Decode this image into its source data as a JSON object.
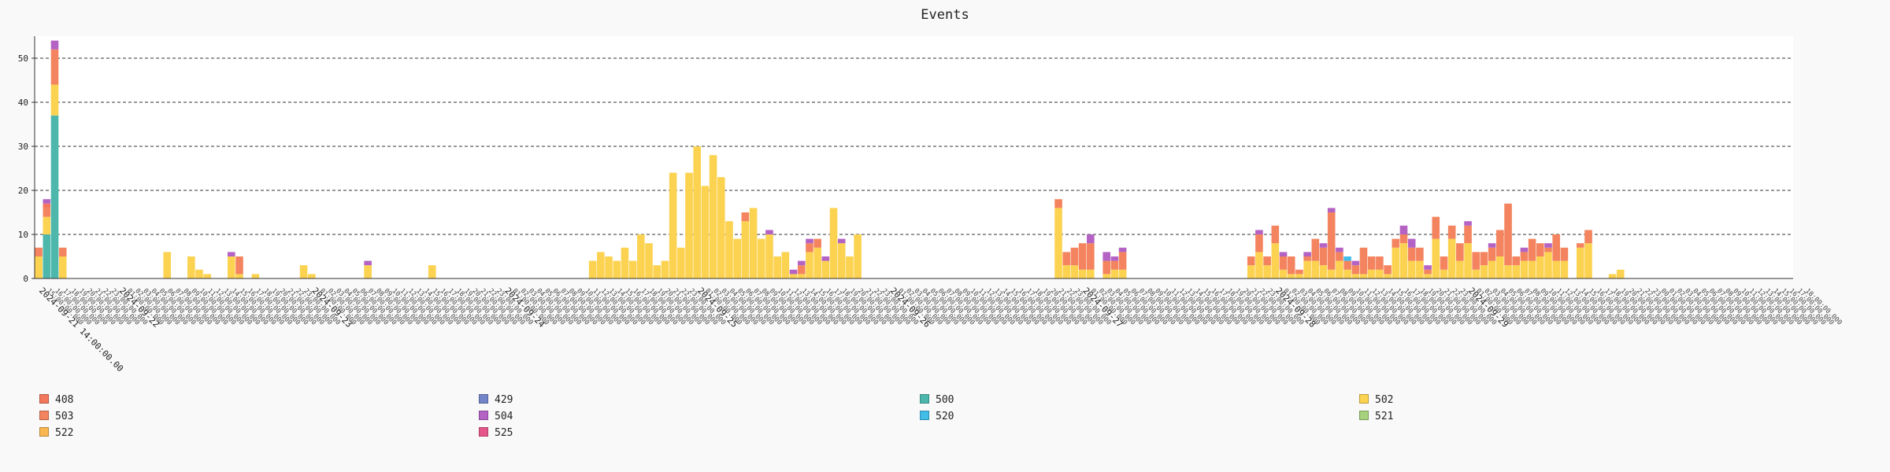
{
  "chart_data": {
    "type": "bar",
    "stacked": true,
    "title": "Events",
    "xlabel": "",
    "ylabel": "",
    "ylim": [
      0,
      55
    ],
    "yticks": [
      0,
      10,
      20,
      30,
      40,
      50
    ],
    "grid": "horizontal dashed",
    "major_x_labels": [
      "2024-09-21 14:00:00.00",
      "2024-09-22",
      "2024-09-23",
      "2024-09-24",
      "2024-09-25",
      "2024-09-26",
      "2024-09-27",
      "2024-09-28",
      "2024-09-29"
    ],
    "first_bucket_label_index": 0,
    "bucket_hours": 1,
    "buckets": 219,
    "series_order": [
      "500",
      "502",
      "522",
      "503",
      "408",
      "520",
      "504",
      "429",
      "521",
      "525"
    ],
    "colors": {
      "408": "#f2775c",
      "503": "#f4845f",
      "522": "#f9b64e",
      "429": "#7285c9",
      "504": "#b462c4",
      "525": "#e4568a",
      "500": "#4db7ac",
      "520": "#42bde8",
      "502": "#fcd251",
      "521": "#a6d17d"
    },
    "series": [
      {
        "name": "500",
        "points": [
          [
            1,
            10
          ],
          [
            2,
            37
          ]
        ]
      },
      {
        "name": "502",
        "points": [
          [
            0,
            5
          ],
          [
            1,
            4
          ],
          [
            2,
            7
          ],
          [
            3,
            5
          ],
          [
            16,
            6
          ],
          [
            19,
            5
          ],
          [
            20,
            2
          ],
          [
            21,
            1
          ],
          [
            24,
            5
          ],
          [
            25,
            1
          ],
          [
            27,
            1
          ],
          [
            33,
            3
          ],
          [
            34,
            1
          ],
          [
            41,
            3
          ],
          [
            49,
            3
          ],
          [
            69,
            4
          ],
          [
            70,
            6
          ],
          [
            71,
            5
          ],
          [
            72,
            4
          ],
          [
            73,
            7
          ],
          [
            74,
            4
          ],
          [
            75,
            10
          ],
          [
            76,
            8
          ],
          [
            77,
            3
          ],
          [
            78,
            4
          ],
          [
            79,
            24
          ],
          [
            80,
            7
          ],
          [
            81,
            24
          ],
          [
            82,
            30
          ],
          [
            83,
            21
          ],
          [
            84,
            28
          ],
          [
            85,
            23
          ],
          [
            86,
            13
          ],
          [
            87,
            9
          ],
          [
            88,
            13
          ],
          [
            89,
            16
          ],
          [
            90,
            9
          ],
          [
            91,
            10
          ],
          [
            92,
            5
          ],
          [
            93,
            6
          ],
          [
            94,
            1
          ],
          [
            95,
            1
          ],
          [
            96,
            6
          ],
          [
            97,
            7
          ],
          [
            98,
            4
          ],
          [
            99,
            16
          ],
          [
            100,
            8
          ],
          [
            101,
            5
          ],
          [
            102,
            10
          ],
          [
            127,
            16
          ],
          [
            128,
            3
          ],
          [
            129,
            3
          ],
          [
            130,
            2
          ],
          [
            131,
            2
          ],
          [
            133,
            1
          ],
          [
            134,
            2
          ],
          [
            135,
            2
          ],
          [
            151,
            3
          ],
          [
            152,
            6
          ],
          [
            153,
            3
          ],
          [
            154,
            8
          ],
          [
            155,
            2
          ],
          [
            156,
            1
          ],
          [
            157,
            1
          ],
          [
            158,
            4
          ],
          [
            159,
            4
          ],
          [
            160,
            3
          ],
          [
            161,
            2
          ],
          [
            162,
            4
          ],
          [
            163,
            2
          ],
          [
            164,
            1
          ],
          [
            165,
            1
          ],
          [
            166,
            2
          ],
          [
            167,
            2
          ],
          [
            168,
            1
          ],
          [
            169,
            7
          ],
          [
            170,
            8
          ],
          [
            171,
            4
          ],
          [
            172,
            4
          ],
          [
            173,
            1
          ],
          [
            174,
            9
          ],
          [
            175,
            2
          ],
          [
            176,
            9
          ],
          [
            177,
            4
          ],
          [
            178,
            8
          ],
          [
            179,
            2
          ],
          [
            180,
            3
          ],
          [
            181,
            4
          ],
          [
            182,
            5
          ],
          [
            183,
            3
          ],
          [
            184,
            3
          ],
          [
            185,
            4
          ],
          [
            186,
            4
          ],
          [
            187,
            5
          ],
          [
            188,
            6
          ],
          [
            189,
            4
          ],
          [
            190,
            4
          ],
          [
            192,
            7
          ],
          [
            193,
            8
          ],
          [
            196,
            1
          ],
          [
            197,
            2
          ]
        ]
      },
      {
        "name": "522",
        "points": [
          [
            1,
            0
          ],
          [
            2,
            0
          ]
        ]
      },
      {
        "name": "503",
        "points": [
          [
            0,
            2
          ],
          [
            1,
            2
          ],
          [
            2,
            8
          ],
          [
            3,
            2
          ],
          [
            25,
            4
          ],
          [
            88,
            2
          ],
          [
            95,
            2
          ],
          [
            96,
            2
          ],
          [
            97,
            2
          ],
          [
            99,
            0
          ],
          [
            127,
            2
          ],
          [
            128,
            3
          ],
          [
            129,
            4
          ],
          [
            130,
            6
          ],
          [
            131,
            6
          ],
          [
            133,
            3
          ],
          [
            134,
            2
          ],
          [
            135,
            4
          ],
          [
            151,
            2
          ],
          [
            152,
            4
          ],
          [
            153,
            2
          ],
          [
            154,
            4
          ],
          [
            155,
            3
          ],
          [
            156,
            4
          ],
          [
            157,
            1
          ],
          [
            158,
            1
          ],
          [
            159,
            5
          ],
          [
            160,
            4
          ],
          [
            161,
            13
          ],
          [
            162,
            2
          ],
          [
            163,
            2
          ],
          [
            164,
            2
          ],
          [
            165,
            6
          ],
          [
            166,
            3
          ],
          [
            167,
            3
          ],
          [
            168,
            2
          ],
          [
            169,
            2
          ],
          [
            170,
            2
          ],
          [
            171,
            3
          ],
          [
            172,
            3
          ],
          [
            173,
            1
          ],
          [
            174,
            5
          ],
          [
            175,
            3
          ],
          [
            176,
            3
          ],
          [
            177,
            4
          ],
          [
            178,
            4
          ],
          [
            179,
            4
          ],
          [
            180,
            3
          ],
          [
            181,
            3
          ],
          [
            182,
            6
          ],
          [
            183,
            14
          ],
          [
            184,
            2
          ],
          [
            185,
            2
          ],
          [
            186,
            5
          ],
          [
            187,
            3
          ],
          [
            188,
            1
          ],
          [
            189,
            6
          ],
          [
            190,
            3
          ],
          [
            192,
            1
          ],
          [
            193,
            3
          ]
        ]
      },
      {
        "name": "408",
        "points": [
          [
            1,
            1
          ],
          [
            2,
            0
          ]
        ]
      },
      {
        "name": "520",
        "points": [
          [
            163,
            1
          ]
        ]
      },
      {
        "name": "504",
        "points": [
          [
            1,
            1
          ],
          [
            2,
            2
          ],
          [
            24,
            1
          ],
          [
            41,
            1
          ],
          [
            91,
            1
          ],
          [
            94,
            1
          ],
          [
            95,
            1
          ],
          [
            96,
            1
          ],
          [
            98,
            1
          ],
          [
            100,
            1
          ],
          [
            131,
            2
          ],
          [
            133,
            2
          ],
          [
            134,
            1
          ],
          [
            135,
            1
          ],
          [
            152,
            1
          ],
          [
            155,
            1
          ],
          [
            158,
            1
          ],
          [
            160,
            1
          ],
          [
            161,
            1
          ],
          [
            162,
            1
          ],
          [
            164,
            1
          ],
          [
            170,
            2
          ],
          [
            171,
            2
          ],
          [
            173,
            1
          ],
          [
            178,
            1
          ],
          [
            181,
            1
          ],
          [
            185,
            1
          ],
          [
            188,
            1
          ]
        ]
      },
      {
        "name": "429",
        "points": []
      },
      {
        "name": "521",
        "points": []
      },
      {
        "name": "525",
        "points": []
      }
    ],
    "legend": {
      "placement": "bottom",
      "entries": [
        "408",
        "429",
        "500",
        "502",
        "503",
        "504",
        "520",
        "521",
        "522",
        "525"
      ]
    }
  }
}
